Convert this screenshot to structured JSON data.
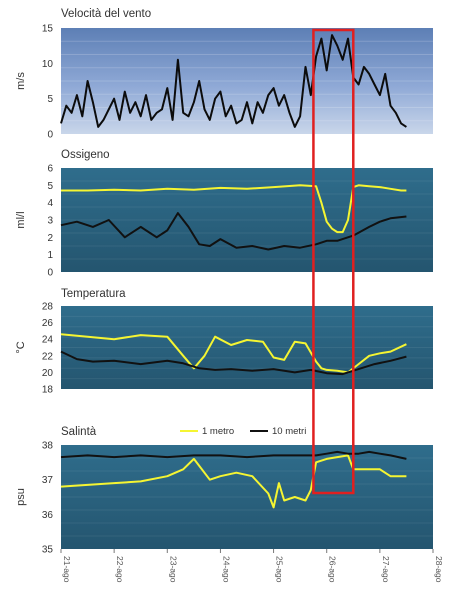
{
  "colors": {
    "sky_top": "#5d7fb5",
    "sky_mid": "#8fa9d6",
    "sky_bottom": "#c9d6ea",
    "sea_top": "#2f6d8c",
    "sea_bottom": "#24556f",
    "series_1m": "#f5f532",
    "series_10m": "#111111",
    "wind": "#0c0c0c",
    "highlight": "#e02020"
  },
  "legend": {
    "label_1m": "1 metro",
    "label_10m": "10 metri"
  },
  "highlight_window": {
    "start_day": 25.75,
    "end_day": 26.5
  },
  "chart_data": [
    {
      "type": "line",
      "title": "Velocità del vento",
      "ylabel": "m/s",
      "ylim": [
        0,
        15
      ],
      "yticks": [
        0,
        5,
        10,
        15
      ],
      "xlim": [
        21,
        28
      ],
      "xticks": [
        "21-ago",
        "22-ago",
        "23-ago",
        "24-ago",
        "25-ago",
        "26-ago",
        "27-ago",
        "28-ago"
      ],
      "series": [
        {
          "id": "wind",
          "x": [
            21.0,
            21.1,
            21.2,
            21.3,
            21.4,
            21.5,
            21.6,
            21.7,
            21.8,
            21.9,
            22.0,
            22.1,
            22.2,
            22.3,
            22.4,
            22.5,
            22.6,
            22.7,
            22.8,
            22.9,
            23.0,
            23.1,
            23.2,
            23.3,
            23.4,
            23.5,
            23.6,
            23.7,
            23.8,
            23.9,
            24.0,
            24.1,
            24.2,
            24.3,
            24.4,
            24.5,
            24.6,
            24.7,
            24.8,
            24.9,
            25.0,
            25.1,
            25.2,
            25.3,
            25.4,
            25.5,
            25.6,
            25.7,
            25.8,
            25.9,
            26.0,
            26.1,
            26.2,
            26.3,
            26.4,
            26.5,
            26.6,
            26.7,
            26.8,
            26.9,
            27.0,
            27.1,
            27.2,
            27.3,
            27.4,
            27.5
          ],
          "y": [
            1.5,
            4.0,
            3.0,
            5.5,
            2.5,
            7.5,
            4.5,
            1.0,
            2.0,
            3.5,
            5.0,
            2.0,
            6.0,
            3.0,
            4.5,
            2.5,
            5.5,
            2.0,
            3.0,
            3.5,
            6.5,
            2.0,
            10.5,
            3.0,
            2.5,
            4.5,
            7.5,
            3.5,
            2.0,
            5.0,
            6.0,
            2.5,
            4.0,
            1.5,
            2.0,
            4.5,
            1.5,
            4.5,
            3.0,
            5.5,
            6.5,
            4.0,
            5.5,
            3.0,
            1.0,
            2.5,
            9.5,
            5.5,
            11.0,
            13.5,
            9.0,
            14.0,
            12.5,
            10.5,
            13.5,
            8.0,
            7.0,
            9.5,
            8.5,
            7.0,
            5.5,
            8.5,
            4.0,
            3.0,
            1.5,
            1.0
          ]
        }
      ]
    },
    {
      "type": "line",
      "title": "Ossigeno",
      "ylabel": "ml/l",
      "ylim": [
        0,
        6
      ],
      "yticks": [
        0,
        1,
        2,
        3,
        4,
        5,
        6
      ],
      "xlim": [
        21,
        28
      ],
      "series": [
        {
          "id": "1m",
          "x": [
            21.0,
            21.5,
            22.0,
            22.5,
            23.0,
            23.5,
            24.0,
            24.5,
            25.0,
            25.5,
            25.8,
            25.9,
            26.0,
            26.1,
            26.2,
            26.3,
            26.4,
            26.5,
            26.6,
            26.8,
            27.0,
            27.2,
            27.4,
            27.5
          ],
          "y": [
            4.7,
            4.7,
            4.75,
            4.7,
            4.8,
            4.75,
            4.85,
            4.8,
            4.9,
            5.0,
            4.95,
            4.0,
            2.9,
            2.5,
            2.3,
            2.3,
            3.0,
            4.9,
            5.0,
            4.95,
            4.9,
            4.8,
            4.7,
            4.7
          ]
        },
        {
          "id": "10m",
          "x": [
            21.0,
            21.3,
            21.6,
            21.9,
            22.2,
            22.5,
            22.8,
            23.0,
            23.2,
            23.4,
            23.6,
            23.8,
            24.0,
            24.3,
            24.6,
            24.9,
            25.2,
            25.5,
            25.8,
            26.0,
            26.2,
            26.5,
            26.8,
            27.0,
            27.2,
            27.5
          ],
          "y": [
            2.7,
            2.9,
            2.6,
            3.0,
            2.0,
            2.6,
            2.0,
            2.4,
            3.4,
            2.6,
            1.6,
            1.5,
            1.9,
            1.4,
            1.5,
            1.3,
            1.5,
            1.4,
            1.6,
            1.8,
            1.8,
            2.1,
            2.6,
            2.9,
            3.1,
            3.2
          ]
        }
      ]
    },
    {
      "type": "line",
      "title": "Temperatura",
      "ylabel": "°C",
      "ylim": [
        18,
        28
      ],
      "yticks": [
        18,
        20,
        22,
        24,
        26,
        28
      ],
      "xlim": [
        21,
        28
      ],
      "series": [
        {
          "id": "1m",
          "x": [
            21.0,
            21.5,
            22.0,
            22.5,
            23.0,
            23.3,
            23.5,
            23.7,
            23.9,
            24.2,
            24.5,
            24.8,
            25.0,
            25.2,
            25.4,
            25.6,
            25.8,
            25.9,
            26.0,
            26.2,
            26.4,
            26.6,
            26.8,
            27.0,
            27.2,
            27.5
          ],
          "y": [
            24.6,
            24.3,
            24.0,
            24.5,
            24.3,
            22.0,
            20.5,
            22.0,
            24.3,
            23.3,
            23.9,
            23.7,
            21.8,
            21.5,
            23.7,
            23.5,
            21.3,
            20.5,
            20.3,
            20.2,
            20.0,
            21.0,
            22.0,
            22.3,
            22.5,
            23.4
          ]
        },
        {
          "id": "10m",
          "x": [
            21.0,
            21.3,
            21.6,
            22.0,
            22.5,
            23.0,
            23.3,
            23.6,
            23.9,
            24.2,
            24.6,
            25.0,
            25.4,
            25.7,
            26.0,
            26.3,
            26.6,
            26.9,
            27.2,
            27.5
          ],
          "y": [
            22.5,
            21.6,
            21.3,
            21.4,
            21.0,
            21.4,
            21.1,
            20.5,
            20.3,
            20.4,
            20.2,
            20.4,
            20.0,
            20.3,
            19.9,
            19.8,
            20.4,
            21.0,
            21.4,
            21.9
          ]
        }
      ]
    },
    {
      "type": "line",
      "title": "Salintà",
      "ylabel": "psu",
      "ylim": [
        35,
        38
      ],
      "yticks": [
        35,
        36,
        37,
        38
      ],
      "xlim": [
        21,
        28
      ],
      "xticks": [
        "21-ago",
        "22-ago",
        "23-ago",
        "24-ago",
        "25-ago",
        "26-ago",
        "27-ago",
        "28-ago"
      ],
      "series": [
        {
          "id": "1m",
          "x": [
            21.0,
            21.5,
            22.0,
            22.5,
            23.0,
            23.3,
            23.5,
            23.8,
            24.0,
            24.3,
            24.6,
            24.9,
            25.0,
            25.1,
            25.2,
            25.4,
            25.6,
            25.7,
            25.8,
            26.0,
            26.2,
            26.4,
            26.5,
            26.8,
            27.0,
            27.2,
            27.5
          ],
          "y": [
            36.8,
            36.85,
            36.9,
            36.95,
            37.1,
            37.3,
            37.6,
            37.0,
            37.1,
            37.2,
            37.1,
            36.6,
            36.2,
            36.9,
            36.4,
            36.5,
            36.4,
            36.7,
            37.5,
            37.6,
            37.65,
            37.7,
            37.3,
            37.3,
            37.3,
            37.1,
            37.1
          ]
        },
        {
          "id": "10m",
          "x": [
            21.0,
            21.5,
            22.0,
            22.5,
            23.0,
            23.5,
            24.0,
            24.5,
            25.0,
            25.5,
            25.8,
            26.0,
            26.2,
            26.4,
            26.6,
            26.8,
            27.0,
            27.2,
            27.5
          ],
          "y": [
            37.65,
            37.7,
            37.65,
            37.7,
            37.65,
            37.7,
            37.7,
            37.65,
            37.7,
            37.7,
            37.7,
            37.75,
            37.8,
            37.75,
            37.75,
            37.8,
            37.75,
            37.7,
            37.6
          ]
        }
      ]
    }
  ]
}
